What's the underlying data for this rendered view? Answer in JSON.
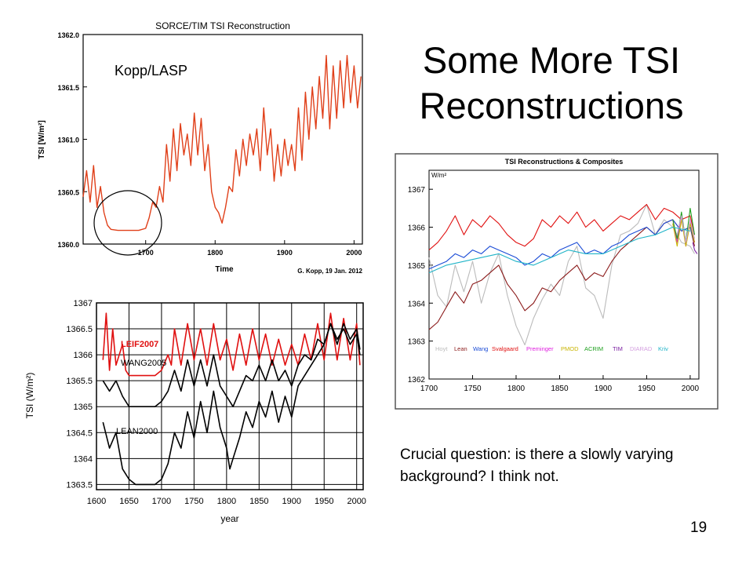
{
  "slide": {
    "title_line1": "Some More TSI",
    "title_line2": "Reconstructions",
    "caption": "Crucial question: is there a slowly varying background? I think not.",
    "slide_number": "19"
  },
  "chart_data": [
    {
      "type": "line",
      "title": "SORCE/TIM TSI Reconstruction",
      "xlabel": "Time",
      "ylabel": "TSI [W/m²]",
      "xlim": [
        1610,
        2012
      ],
      "ylim": [
        1360.0,
        1362.0
      ],
      "xticks": [
        1700,
        1800,
        1900,
        2000
      ],
      "yticks": [
        1360.0,
        1360.5,
        1361.0,
        1361.5,
        1362.0
      ],
      "annotation": "Kopp/LASP",
      "credit": "G. Kopp, 19 Jan. 2012",
      "series_color": "#e0401a",
      "series": [
        {
          "x": [
            1610,
            1615,
            1620,
            1625,
            1630,
            1635,
            1640,
            1645,
            1650,
            1660,
            1670,
            1680,
            1690,
            1700,
            1705,
            1710,
            1715,
            1720,
            1725,
            1730,
            1735,
            1740,
            1745,
            1750,
            1755,
            1760,
            1765,
            1770,
            1775,
            1780,
            1785,
            1790,
            1795,
            1800,
            1805,
            1810,
            1815,
            1820,
            1825,
            1830,
            1835,
            1840,
            1845,
            1850,
            1855,
            1860,
            1865,
            1870,
            1875,
            1880,
            1885,
            1890,
            1895,
            1900,
            1905,
            1910,
            1915,
            1920,
            1925,
            1930,
            1935,
            1940,
            1945,
            1950,
            1955,
            1960,
            1965,
            1970,
            1975,
            1980,
            1985,
            1990,
            1995,
            2000,
            2005,
            2010
          ],
          "y": [
            1360.45,
            1360.7,
            1360.4,
            1360.75,
            1360.35,
            1360.55,
            1360.3,
            1360.18,
            1360.14,
            1360.13,
            1360.13,
            1360.13,
            1360.13,
            1360.15,
            1360.25,
            1360.4,
            1360.35,
            1360.55,
            1360.4,
            1360.95,
            1360.6,
            1361.1,
            1360.7,
            1361.15,
            1360.85,
            1361.05,
            1360.75,
            1361.25,
            1360.85,
            1361.2,
            1360.7,
            1360.95,
            1360.5,
            1360.35,
            1360.3,
            1360.2,
            1360.35,
            1360.55,
            1360.5,
            1360.9,
            1360.65,
            1361.0,
            1360.75,
            1361.05,
            1360.85,
            1361.1,
            1360.7,
            1361.3,
            1360.85,
            1361.1,
            1360.6,
            1360.95,
            1360.65,
            1361.0,
            1360.75,
            1360.95,
            1360.7,
            1361.3,
            1360.8,
            1361.45,
            1361.0,
            1361.5,
            1361.1,
            1361.6,
            1361.2,
            1361.8,
            1361.1,
            1361.7,
            1361.2,
            1361.75,
            1361.3,
            1361.8,
            1361.35,
            1361.7,
            1361.3,
            1361.6
          ]
        }
      ]
    },
    {
      "type": "line",
      "title": "TSI Reconstructions & Composites",
      "xlabel": "",
      "ylabel": "W/m²",
      "xlim": [
        1700,
        2010
      ],
      "ylim": [
        1362,
        1367.5
      ],
      "xticks": [
        1700,
        1750,
        1800,
        1850,
        1900,
        1950,
        2000
      ],
      "yticks": [
        1362,
        1363,
        1364,
        1365,
        1366,
        1367
      ],
      "legend_position": "bottom",
      "series": [
        {
          "name": "Hoyt",
          "color": "#bbbbbb",
          "x": [
            1700,
            1710,
            1720,
            1730,
            1740,
            1750,
            1760,
            1770,
            1780,
            1790,
            1800,
            1810,
            1820,
            1830,
            1840,
            1850,
            1860,
            1870,
            1880,
            1890,
            1900,
            1910,
            1920,
            1930,
            1940,
            1950,
            1960,
            1970,
            1980,
            1990,
            2000,
            2005
          ],
          "y": [
            1365.2,
            1364.2,
            1363.9,
            1365.0,
            1364.3,
            1365.1,
            1364.0,
            1364.8,
            1365.3,
            1364.2,
            1363.4,
            1362.9,
            1363.6,
            1364.1,
            1364.5,
            1364.2,
            1365.1,
            1365.5,
            1364.4,
            1364.2,
            1363.6,
            1365.0,
            1365.8,
            1365.9,
            1366.1,
            1366.6,
            1365.8,
            1366.2,
            1366.0,
            1365.6,
            1365.5,
            1365.3
          ]
        },
        {
          "name": "Lean",
          "color": "#8b1a1a",
          "x": [
            1700,
            1710,
            1720,
            1730,
            1740,
            1750,
            1760,
            1770,
            1780,
            1790,
            1800,
            1810,
            1820,
            1830,
            1840,
            1850,
            1860,
            1870,
            1880,
            1890,
            1900,
            1910,
            1920,
            1930,
            1940,
            1950,
            1960,
            1970,
            1980,
            1990,
            2000,
            2005
          ],
          "y": [
            1363.3,
            1363.5,
            1363.9,
            1364.3,
            1364.0,
            1364.5,
            1364.6,
            1364.8,
            1365.0,
            1364.5,
            1364.2,
            1363.8,
            1364.0,
            1364.4,
            1364.3,
            1364.6,
            1364.8,
            1365.0,
            1364.6,
            1364.8,
            1364.7,
            1365.1,
            1365.4,
            1365.6,
            1365.8,
            1366.0,
            1365.8,
            1366.1,
            1366.2,
            1365.9,
            1366.0,
            1365.5
          ]
        },
        {
          "name": "Wang",
          "color": "#1a4bd6",
          "x": [
            1700,
            1710,
            1720,
            1730,
            1740,
            1750,
            1760,
            1770,
            1780,
            1790,
            1800,
            1810,
            1820,
            1830,
            1840,
            1850,
            1860,
            1870,
            1880,
            1890,
            1900,
            1910,
            1920,
            1930,
            1940,
            1950,
            1960,
            1970,
            1980,
            1990,
            2000,
            2005
          ],
          "y": [
            1364.9,
            1365.0,
            1365.1,
            1365.3,
            1365.2,
            1365.4,
            1365.3,
            1365.5,
            1365.4,
            1365.3,
            1365.2,
            1365.0,
            1365.1,
            1365.3,
            1365.2,
            1365.4,
            1365.5,
            1365.6,
            1365.3,
            1365.4,
            1365.3,
            1365.5,
            1365.6,
            1365.8,
            1365.9,
            1366.0,
            1365.8,
            1366.1,
            1366.2,
            1365.9,
            1366.0,
            1365.6
          ]
        },
        {
          "name": "Svalgaard",
          "color": "#e01010",
          "x": [
            1700,
            1710,
            1720,
            1730,
            1740,
            1750,
            1760,
            1770,
            1780,
            1790,
            1800,
            1810,
            1820,
            1830,
            1840,
            1850,
            1860,
            1870,
            1880,
            1890,
            1900,
            1910,
            1920,
            1930,
            1940,
            1950,
            1960,
            1970,
            1980,
            1990,
            2000,
            2005
          ],
          "y": [
            1365.4,
            1365.6,
            1365.9,
            1366.3,
            1365.8,
            1366.2,
            1366.0,
            1366.3,
            1366.1,
            1365.8,
            1365.6,
            1365.5,
            1365.7,
            1366.2,
            1366.0,
            1366.3,
            1366.1,
            1366.4,
            1366.0,
            1366.2,
            1365.9,
            1366.1,
            1366.3,
            1366.2,
            1366.4,
            1366.6,
            1366.2,
            1366.5,
            1366.4,
            1366.2,
            1366.3,
            1365.8
          ]
        },
        {
          "name": "Preminger",
          "color": "#e020e0",
          "x": [
            1980,
            1985,
            1990,
            1995,
            2000,
            2005
          ],
          "y": [
            1366.2,
            1365.6,
            1366.3,
            1365.5,
            1366.2,
            1365.6
          ]
        },
        {
          "name": "PMOD",
          "color": "#c8b400",
          "x": [
            1980,
            1985,
            1990,
            1995,
            2000,
            2005
          ],
          "y": [
            1366.1,
            1365.5,
            1366.2,
            1365.5,
            1366.1,
            1365.6
          ]
        },
        {
          "name": "ACRIM",
          "color": "#1ea01e",
          "x": [
            1980,
            1985,
            1990,
            1995,
            2000,
            2005
          ],
          "y": [
            1366.2,
            1365.7,
            1366.4,
            1365.6,
            1366.5,
            1365.8
          ]
        },
        {
          "name": "TIM",
          "color": "#7b1fa2",
          "x": [
            2003,
            2005,
            2008
          ],
          "y": [
            1365.6,
            1365.4,
            1365.3
          ]
        },
        {
          "name": "DIARAD",
          "color": "#d4a0e0",
          "x": [
            1985,
            1990,
            1995,
            2000,
            2005
          ],
          "y": [
            1365.8,
            1366.3,
            1365.6,
            1366.2,
            1365.7
          ]
        },
        {
          "name": "Kriv",
          "color": "#20b4c8",
          "x": [
            1700,
            1720,
            1740,
            1760,
            1780,
            1800,
            1820,
            1840,
            1860,
            1880,
            1900,
            1920,
            1940,
            1960,
            1980,
            2000
          ],
          "y": [
            1364.8,
            1365.0,
            1365.1,
            1365.2,
            1365.3,
            1365.1,
            1365.0,
            1365.2,
            1365.4,
            1365.3,
            1365.3,
            1365.5,
            1365.7,
            1365.8,
            1366.0,
            1365.9
          ]
        }
      ]
    },
    {
      "type": "line",
      "title": "",
      "xlabel": "year",
      "ylabel": "TSI (W/m²)",
      "xlim": [
        1600,
        2010
      ],
      "ylim": [
        1363.4,
        1367
      ],
      "xticks": [
        1600,
        1650,
        1700,
        1750,
        1800,
        1850,
        1900,
        1950,
        2000
      ],
      "yticks": [
        1363.5,
        1364,
        1364.5,
        1365,
        1365.5,
        1366,
        1366.5,
        1367
      ],
      "series": [
        {
          "name": "LEIF2007",
          "color": "#e01010",
          "x": [
            1610,
            1615,
            1620,
            1625,
            1630,
            1640,
            1645,
            1650,
            1660,
            1670,
            1680,
            1690,
            1700,
            1710,
            1715,
            1720,
            1730,
            1740,
            1750,
            1760,
            1770,
            1780,
            1790,
            1800,
            1810,
            1820,
            1830,
            1840,
            1850,
            1860,
            1870,
            1880,
            1890,
            1900,
            1910,
            1920,
            1930,
            1940,
            1950,
            1960,
            1970,
            1980,
            1990,
            2000,
            2005
          ],
          "y": [
            1365.9,
            1366.8,
            1365.7,
            1366.5,
            1365.8,
            1366.2,
            1365.7,
            1365.6,
            1365.6,
            1365.6,
            1365.6,
            1365.6,
            1365.7,
            1366.0,
            1365.8,
            1366.5,
            1365.8,
            1366.6,
            1365.9,
            1366.5,
            1365.8,
            1366.6,
            1365.9,
            1366.3,
            1365.7,
            1366.4,
            1365.8,
            1366.5,
            1365.9,
            1366.4,
            1365.8,
            1366.3,
            1365.8,
            1366.2,
            1365.8,
            1366.4,
            1365.9,
            1366.6,
            1365.9,
            1366.8,
            1365.9,
            1366.7,
            1365.9,
            1366.6,
            1365.8
          ]
        },
        {
          "name": "WANG2005",
          "color": "#000000",
          "x": [
            1610,
            1620,
            1630,
            1640,
            1650,
            1660,
            1670,
            1680,
            1690,
            1700,
            1710,
            1720,
            1730,
            1740,
            1750,
            1760,
            1770,
            1780,
            1790,
            1800,
            1810,
            1820,
            1830,
            1840,
            1850,
            1860,
            1870,
            1880,
            1890,
            1900,
            1910,
            1920,
            1930,
            1940,
            1950,
            1960,
            1970,
            1980,
            1990,
            2000,
            2005
          ],
          "y": [
            1365.5,
            1365.3,
            1365.5,
            1365.2,
            1365.0,
            1365.0,
            1365.0,
            1365.0,
            1365.0,
            1365.1,
            1365.3,
            1365.7,
            1365.3,
            1365.9,
            1365.4,
            1365.9,
            1365.4,
            1366.0,
            1365.4,
            1365.2,
            1365.0,
            1365.3,
            1365.6,
            1365.5,
            1365.8,
            1365.5,
            1365.9,
            1365.5,
            1365.7,
            1365.4,
            1365.8,
            1366.0,
            1365.9,
            1366.3,
            1366.2,
            1366.6,
            1366.3,
            1366.5,
            1366.2,
            1366.4,
            1366.0
          ]
        },
        {
          "name": "LEAN2000",
          "color": "#000000",
          "x": [
            1610,
            1620,
            1630,
            1640,
            1650,
            1660,
            1670,
            1680,
            1690,
            1700,
            1710,
            1720,
            1730,
            1740,
            1750,
            1760,
            1770,
            1780,
            1790,
            1800,
            1805,
            1810,
            1820,
            1830,
            1840,
            1850,
            1860,
            1870,
            1880,
            1890,
            1900,
            1910,
            1920,
            1930,
            1940,
            1950,
            1960,
            1970,
            1980,
            1990,
            2000,
            2005
          ],
          "y": [
            1364.7,
            1364.2,
            1364.5,
            1363.8,
            1363.6,
            1363.5,
            1363.5,
            1363.5,
            1363.5,
            1363.6,
            1363.9,
            1364.5,
            1364.2,
            1364.9,
            1364.4,
            1365.1,
            1364.5,
            1365.3,
            1364.6,
            1364.2,
            1363.8,
            1364.0,
            1364.4,
            1364.9,
            1364.6,
            1365.1,
            1364.8,
            1365.3,
            1364.7,
            1365.2,
            1364.8,
            1365.4,
            1365.6,
            1365.8,
            1366.0,
            1366.2,
            1366.6,
            1366.2,
            1366.6,
            1366.3,
            1366.5,
            1366.1
          ]
        }
      ]
    }
  ]
}
